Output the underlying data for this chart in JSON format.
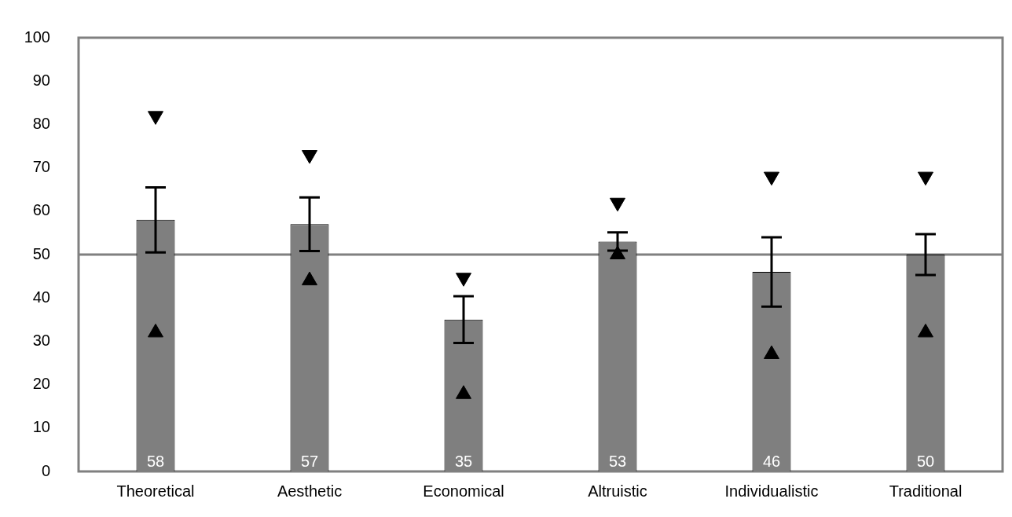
{
  "chart_data": {
    "type": "bar",
    "categories": [
      "Theoretical",
      "Aesthetic",
      "Economical",
      "Altruistic",
      "Individualistic",
      "Traditional"
    ],
    "series": [
      {
        "color": "#7f7f7f",
        "values": [
          58,
          57,
          35,
          53,
          46,
          50
        ],
        "value_labels": [
          "58",
          "57",
          "35",
          "53",
          "46",
          "50"
        ],
        "errors": [
          7.5,
          6.2,
          5.4,
          2.1,
          8,
          4.7
        ]
      },
      {
        "type": "scatter",
        "color": "#000000",
        "marker": "triangle-down",
        "x": [
          "Theoretical",
          "Aesthetic",
          "Economical",
          "Altruistic",
          "Individualistic",
          "Traditional"
        ],
        "values": [
          82,
          73,
          44.7,
          62,
          68,
          68
        ]
      },
      {
        "type": "scatter",
        "color": "#000000",
        "marker": "triangle",
        "x": [
          "Theoretical",
          "Aesthetic",
          "Economical",
          "Altruistic",
          "Individualistic",
          "Traditional"
        ],
        "values": [
          32,
          44,
          17.8,
          50,
          27,
          32
        ]
      }
    ],
    "ylim": [
      0,
      100
    ],
    "yticks": [
      0,
      10,
      20,
      30,
      40,
      50,
      60,
      70,
      80,
      90,
      100
    ],
    "grid": false,
    "legend": false,
    "ref_lines": [
      {
        "axis": "y",
        "value": 50,
        "color": "#808080"
      }
    ]
  }
}
